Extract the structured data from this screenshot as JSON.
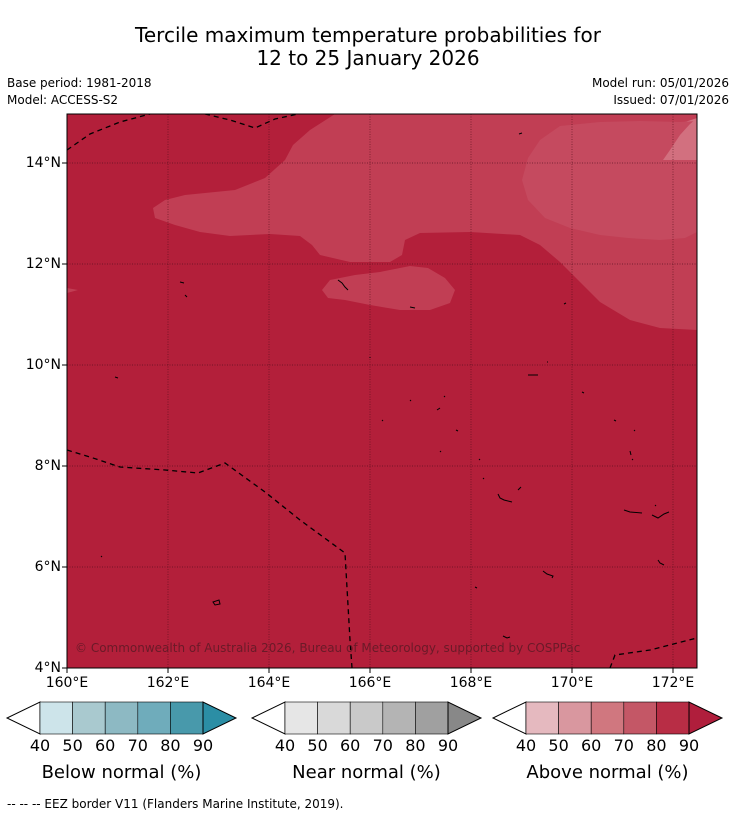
{
  "title": {
    "line1": "Tercile maximum temperature probabilities for",
    "line2": "12 to 25 January 2026"
  },
  "meta": {
    "base_period": "Base period: 1981-2018",
    "model": "Model: ACCESS-S2",
    "model_run": "Model run: 05/01/2026",
    "issued": "Issued: 07/01/2026"
  },
  "map": {
    "lat_labels": [
      "14°N",
      "12°N",
      "10°N",
      "8°N",
      "6°N",
      "4°N"
    ],
    "lon_labels": [
      "160°E",
      "162°E",
      "164°E",
      "166°E",
      "168°E",
      "170°E",
      "172°E"
    ],
    "copyright": "© Commonwealth of Australia 2026, Bureau of Meteorology, supported by COSPPac",
    "colors": {
      "above_80_90": "#b31f3a",
      "above_70_80": "#c13e54",
      "above_60_70": "#d2707f"
    }
  },
  "colorbars": [
    {
      "title": "Below normal (%)",
      "ticks": [
        "40",
        "50",
        "60",
        "70",
        "80",
        "90"
      ],
      "colors": [
        "#ffffff",
        "#cde4ea",
        "#a9c9cf",
        "#8db9c3",
        "#6facbb",
        "#4899ab",
        "#2b8ea5"
      ]
    },
    {
      "title": "Near normal (%)",
      "ticks": [
        "40",
        "50",
        "60",
        "70",
        "80",
        "90"
      ],
      "colors": [
        "#ffffff",
        "#e6e6e6",
        "#d9d9d9",
        "#c9c9c9",
        "#b4b4b4",
        "#a0a0a0",
        "#888888"
      ]
    },
    {
      "title": "Above normal (%)",
      "ticks": [
        "40",
        "50",
        "60",
        "70",
        "80",
        "90"
      ],
      "colors": [
        "#ffffff",
        "#e5b9bf",
        "#d9979f",
        "#d0777f",
        "#c45766",
        "#b82d45",
        "#b01e3c"
      ]
    }
  ],
  "footer": "-- -- -- EEZ border V11 (Flanders Marine Institute, 2019)."
}
